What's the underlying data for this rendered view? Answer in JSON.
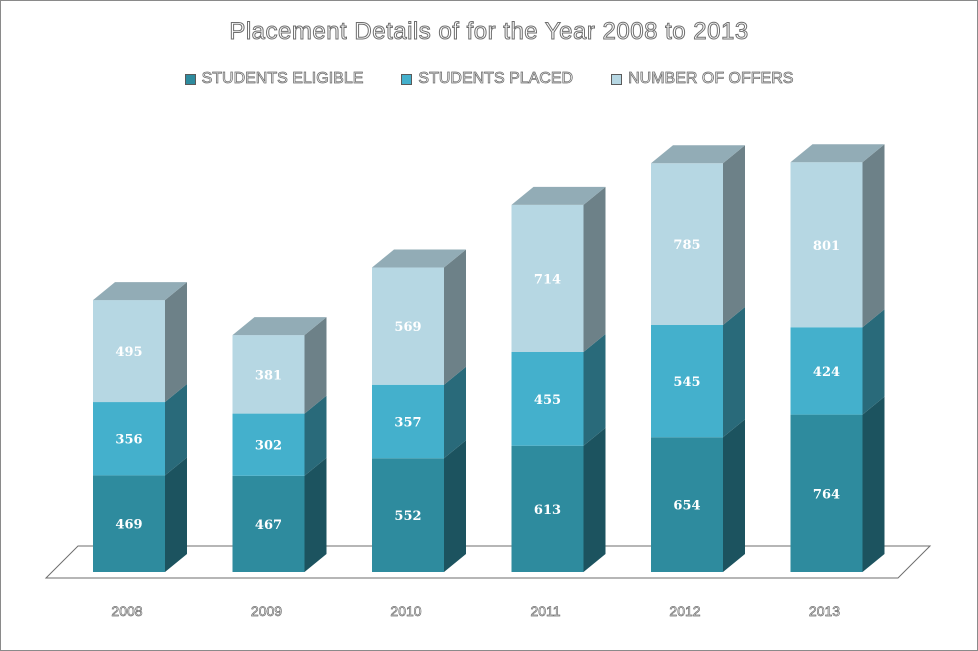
{
  "chart_data": {
    "type": "bar",
    "stacked": true,
    "title": "Placement Details of for the Year 2008 to 2013",
    "categories": [
      "2008",
      "2009",
      "2010",
      "2011",
      "2012",
      "2013"
    ],
    "series": [
      {
        "name": "STUDENTS ELIGIBLE",
        "values": [
          469,
          467,
          552,
          613,
          654,
          764
        ],
        "color": "#2e8b9e"
      },
      {
        "name": "STUDENTS PLACED",
        "values": [
          356,
          302,
          357,
          455,
          545,
          424
        ],
        "color": "#44b0cc"
      },
      {
        "name": "NUMBER OF OFFERS",
        "values": [
          495,
          381,
          569,
          714,
          785,
          801
        ],
        "color": "#b6d7e3"
      }
    ],
    "legend_position": "top",
    "grid": false,
    "three_d": true
  }
}
